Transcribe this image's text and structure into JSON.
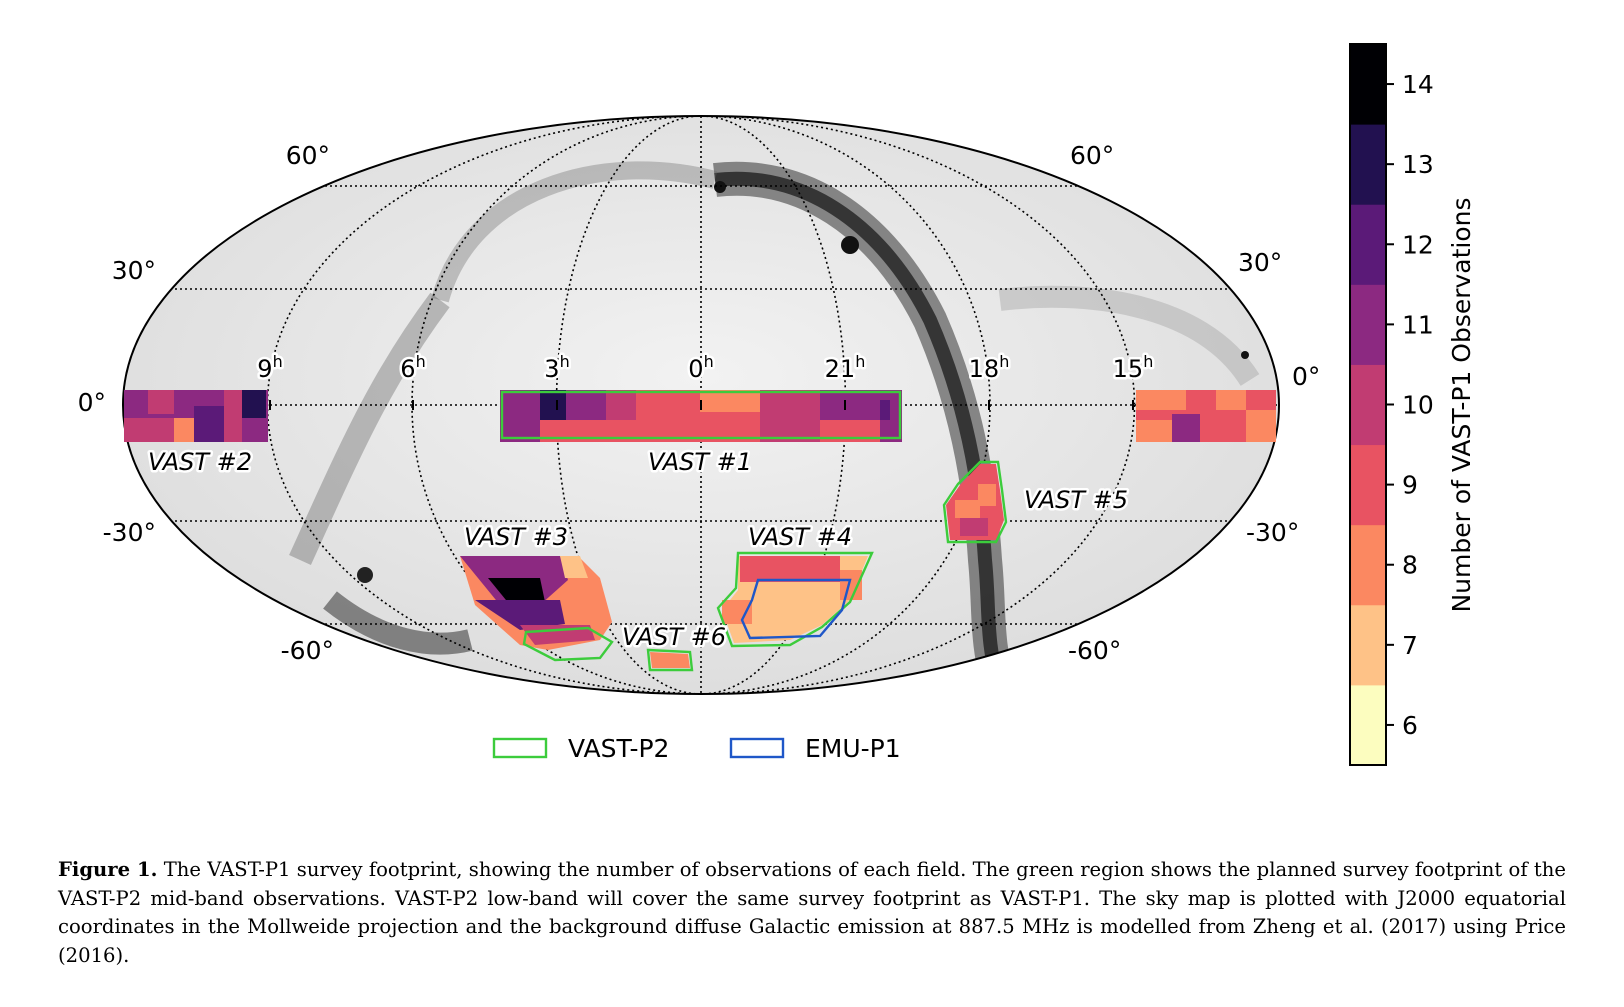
{
  "figure": {
    "ra_labels": [
      "9",
      "6",
      "3",
      "0",
      "21",
      "18",
      "15"
    ],
    "ra_unit": "h",
    "dec_labels_left": [
      "60°",
      "30°",
      "0°",
      "-30°",
      "-60°"
    ],
    "dec_labels_right": [
      "60°",
      "30°",
      "0°",
      "-30°",
      "-60°"
    ],
    "fields": {
      "f1": "VAST #1",
      "f2": "VAST #2",
      "f3": "VAST #3",
      "f4": "VAST #4",
      "f5": "VAST #5",
      "f6": "VAST #6"
    },
    "legend": {
      "vast_p2": "VAST-P2",
      "emu_p1": "EMU-P1",
      "vast_p2_color": "#3ccc3c",
      "emu_p1_color": "#1f57c8"
    },
    "colorbar": {
      "label": "Number of VAST-P1 Observations",
      "ticks": [
        "6",
        "7",
        "8",
        "9",
        "10",
        "11",
        "12",
        "13",
        "14"
      ],
      "colors": [
        "#fcfdbf",
        "#fec287",
        "#fb8861",
        "#e85362",
        "#c13c72",
        "#8c2981",
        "#5b1a78",
        "#221150",
        "#000004"
      ],
      "colormap": "magma"
    }
  },
  "caption": {
    "label": "Figure 1.",
    "text": "The VAST-P1 survey footprint, showing the number of observations of each field. The green region shows the planned survey footprint of the VAST-P2 mid-band observations. VAST-P2 low-band will cover the same survey footprint as VAST-P1. The sky map is plotted with J2000 equatorial coordinates in the Mollweide projection and the background diffuse Galactic emission at 887.5 MHz is modelled from Zheng et al. (2017) using Price (2016)."
  }
}
